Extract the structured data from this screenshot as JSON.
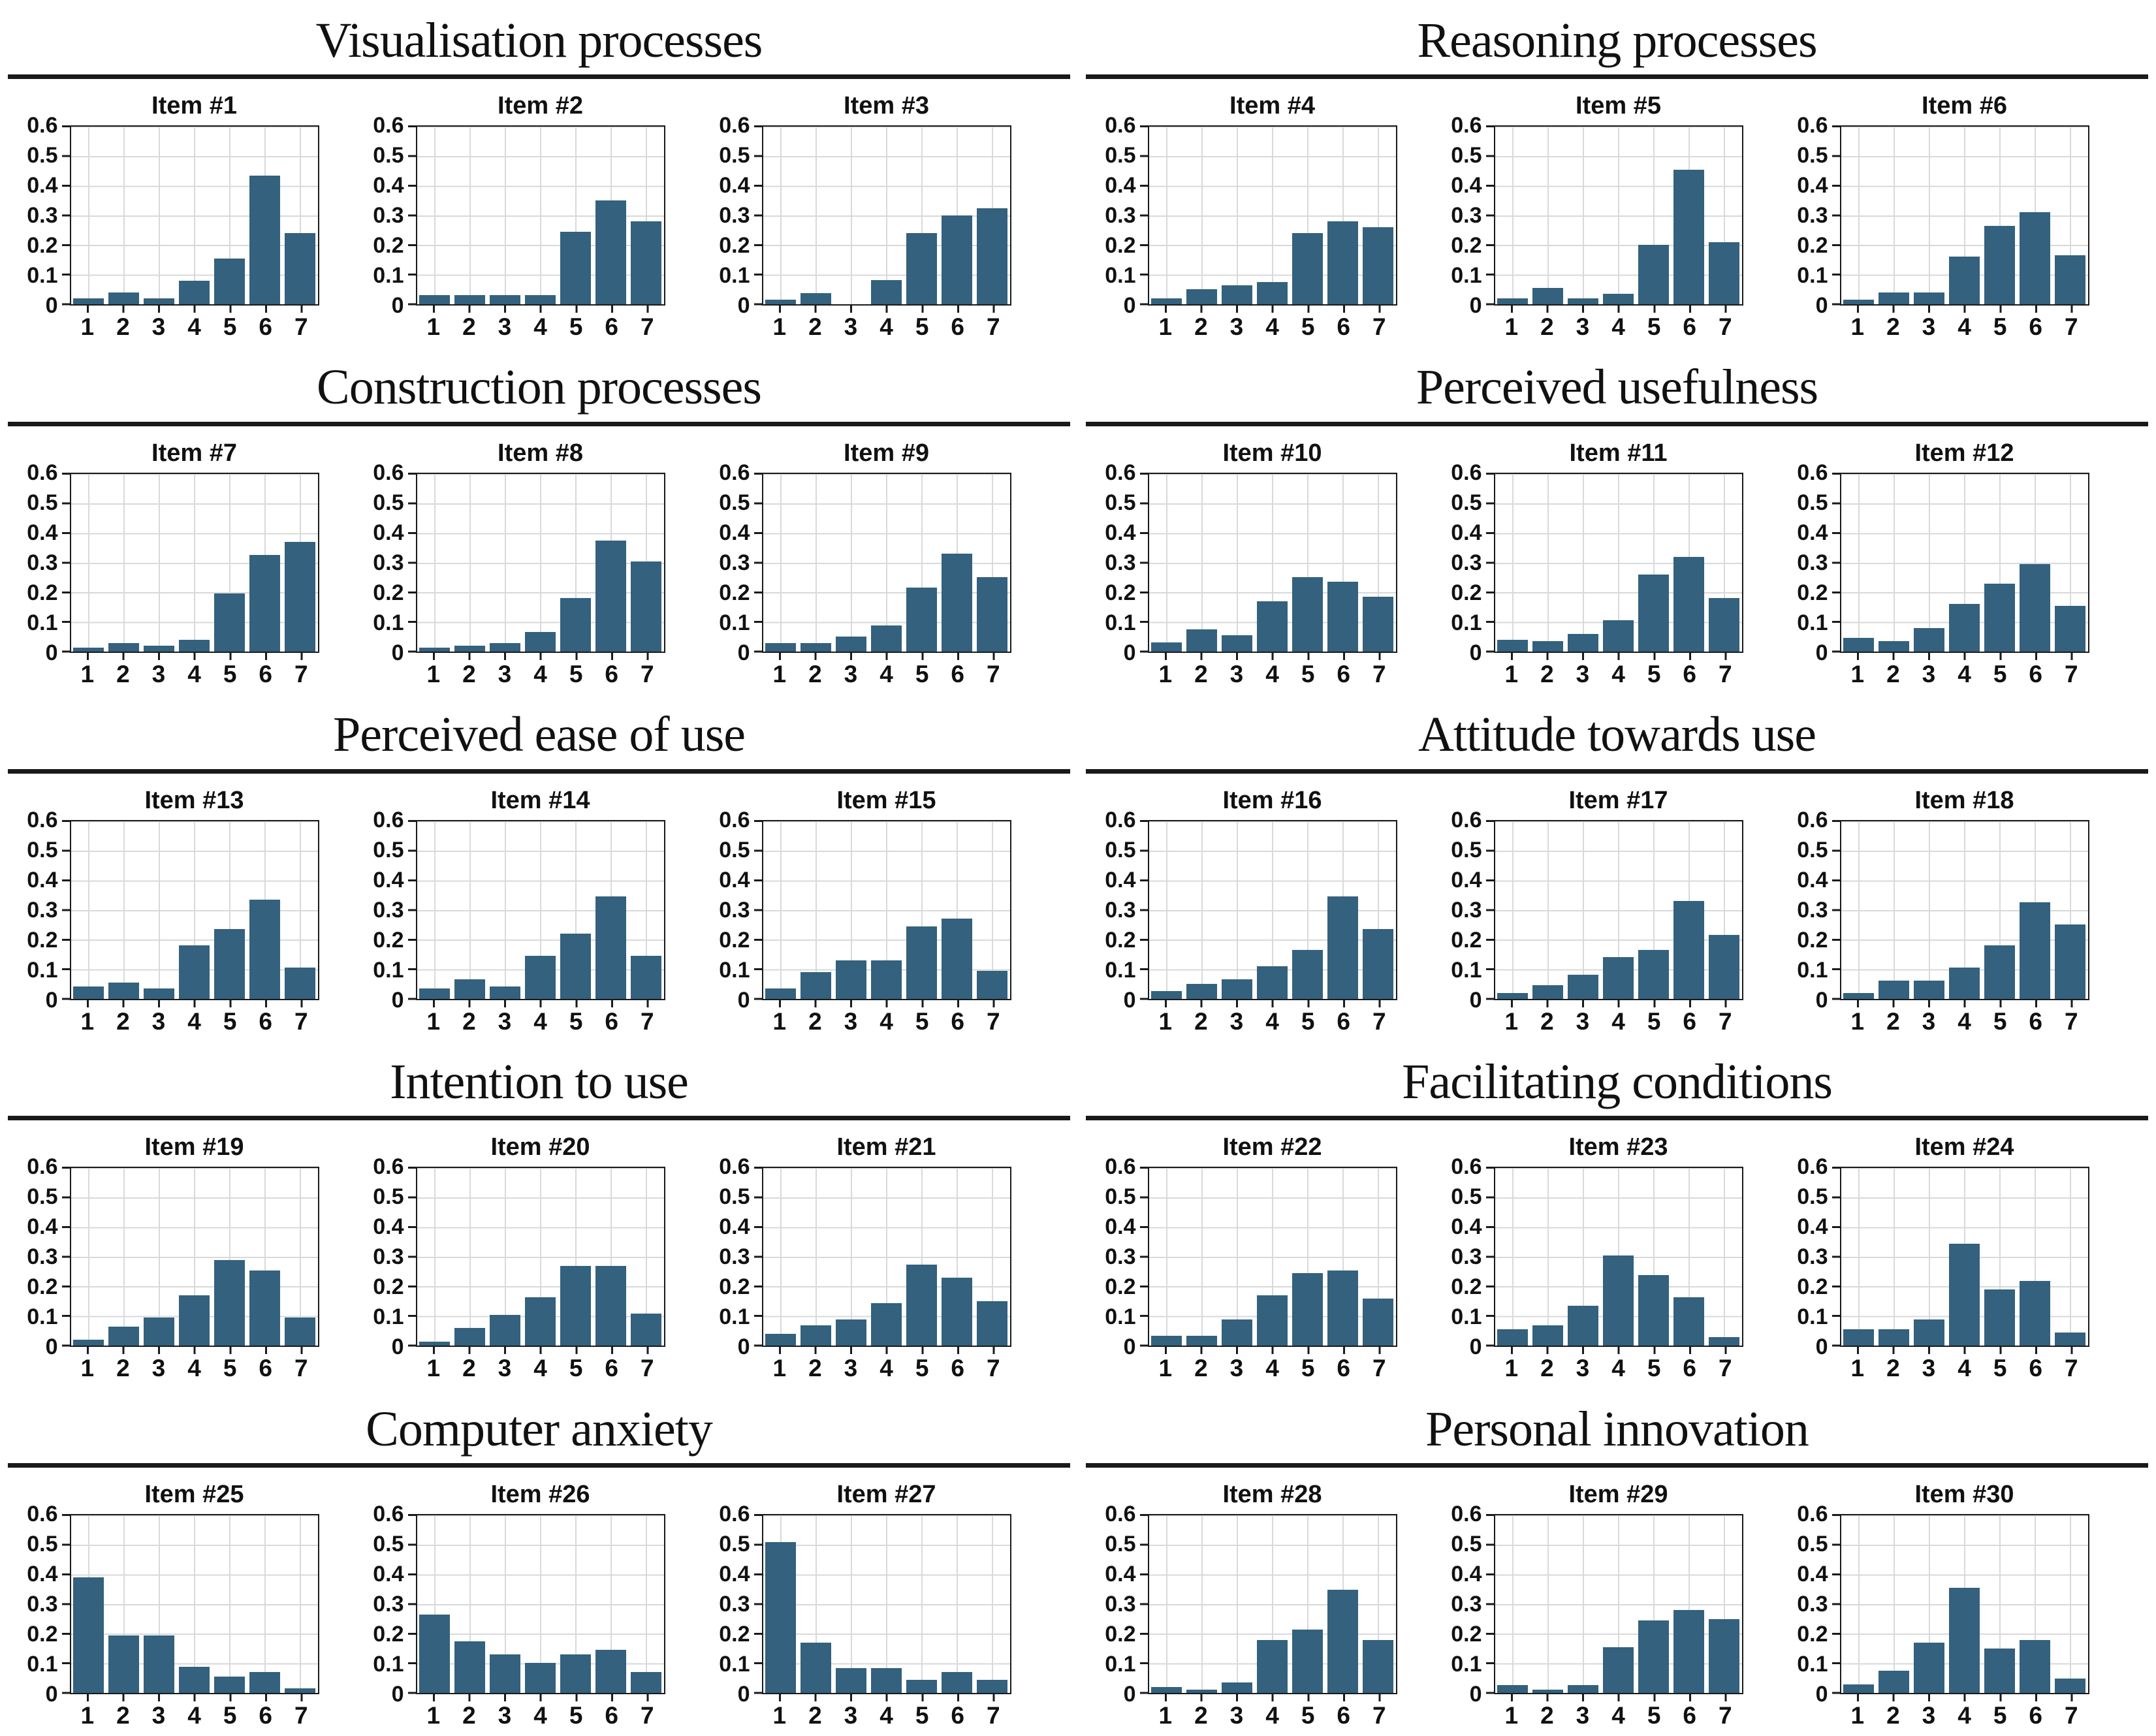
{
  "style": {
    "bar_color": "#33617e",
    "grid_color": "#d9d9d9",
    "axis_color": "#1a1a1a",
    "text_color": "#111111",
    "background": "#ffffff"
  },
  "chart_data": {
    "type": "bar",
    "x_tick_labels": [
      "1",
      "2",
      "3",
      "4",
      "5",
      "6",
      "7"
    ],
    "y_tick_labels": [
      "0.6",
      "0.5",
      "0.4",
      "0.3",
      "0.2",
      "0.1",
      "0"
    ],
    "ylim": [
      0,
      0.6
    ],
    "grid": true,
    "legend": false,
    "sections": [
      {
        "title": "Visualisation processes",
        "items": [
          {
            "label": "Item #1",
            "values": [
              0.02,
              0.04,
              0.02,
              0.08,
              0.155,
              0.435,
              0.24
            ]
          },
          {
            "label": "Item #2",
            "values": [
              0.03,
              0.03,
              0.03,
              0.03,
              0.245,
              0.35,
              0.28
            ]
          },
          {
            "label": "Item #3",
            "values": [
              0.015,
              0.038,
              0.0,
              0.082,
              0.24,
              0.3,
              0.325
            ]
          }
        ]
      },
      {
        "title": "Reasoning processes",
        "items": [
          {
            "label": "Item #4",
            "values": [
              0.02,
              0.05,
              0.065,
              0.075,
              0.24,
              0.28,
              0.26
            ]
          },
          {
            "label": "Item #5",
            "values": [
              0.02,
              0.055,
              0.02,
              0.035,
              0.2,
              0.455,
              0.21
            ]
          },
          {
            "label": "Item #6",
            "values": [
              0.015,
              0.04,
              0.04,
              0.16,
              0.265,
              0.31,
              0.165
            ]
          }
        ]
      },
      {
        "title": "Construction processes",
        "items": [
          {
            "label": "Item #7",
            "values": [
              0.013,
              0.028,
              0.02,
              0.04,
              0.195,
              0.325,
              0.37
            ]
          },
          {
            "label": "Item #8",
            "values": [
              0.013,
              0.02,
              0.028,
              0.065,
              0.18,
              0.375,
              0.305
            ]
          },
          {
            "label": "Item #9",
            "values": [
              0.028,
              0.028,
              0.05,
              0.088,
              0.215,
              0.33,
              0.25
            ]
          }
        ]
      },
      {
        "title": "Perceived usefulness",
        "items": [
          {
            "label": "Item #10",
            "values": [
              0.03,
              0.075,
              0.055,
              0.17,
              0.25,
              0.235,
              0.185
            ]
          },
          {
            "label": "Item #11",
            "values": [
              0.04,
              0.035,
              0.06,
              0.105,
              0.26,
              0.32,
              0.18
            ]
          },
          {
            "label": "Item #12",
            "values": [
              0.045,
              0.035,
              0.08,
              0.16,
              0.23,
              0.295,
              0.155
            ]
          }
        ]
      },
      {
        "title": "Perceived ease of use",
        "items": [
          {
            "label": "Item #13",
            "values": [
              0.04,
              0.055,
              0.035,
              0.18,
              0.235,
              0.335,
              0.105
            ]
          },
          {
            "label": "Item #14",
            "values": [
              0.035,
              0.065,
              0.04,
              0.145,
              0.22,
              0.345,
              0.145
            ]
          },
          {
            "label": "Item #15",
            "values": [
              0.035,
              0.09,
              0.13,
              0.13,
              0.245,
              0.27,
              0.095
            ]
          }
        ]
      },
      {
        "title": "Attitude towards use",
        "items": [
          {
            "label": "Item #16",
            "values": [
              0.025,
              0.05,
              0.065,
              0.11,
              0.165,
              0.345,
              0.235
            ]
          },
          {
            "label": "Item #17",
            "values": [
              0.02,
              0.045,
              0.08,
              0.14,
              0.165,
              0.33,
              0.215
            ]
          },
          {
            "label": "Item #18",
            "values": [
              0.02,
              0.06,
              0.06,
              0.105,
              0.18,
              0.325,
              0.25
            ]
          }
        ]
      },
      {
        "title": "Intention to use",
        "items": [
          {
            "label": "Item #19",
            "values": [
              0.02,
              0.065,
              0.095,
              0.17,
              0.29,
              0.255,
              0.095
            ]
          },
          {
            "label": "Item #20",
            "values": [
              0.015,
              0.06,
              0.105,
              0.165,
              0.27,
              0.27,
              0.11
            ]
          },
          {
            "label": "Item #21",
            "values": [
              0.04,
              0.07,
              0.09,
              0.145,
              0.275,
              0.23,
              0.15
            ]
          }
        ]
      },
      {
        "title": "Facilitating conditions",
        "items": [
          {
            "label": "Item #22",
            "values": [
              0.035,
              0.035,
              0.09,
              0.17,
              0.245,
              0.255,
              0.16
            ]
          },
          {
            "label": "Item #23",
            "values": [
              0.055,
              0.07,
              0.135,
              0.305,
              0.24,
              0.165,
              0.03
            ]
          },
          {
            "label": "Item #24",
            "values": [
              0.055,
              0.055,
              0.09,
              0.345,
              0.19,
              0.22,
              0.045
            ]
          }
        ]
      },
      {
        "title": "Computer anxiety",
        "items": [
          {
            "label": "Item #25",
            "values": [
              0.39,
              0.195,
              0.195,
              0.088,
              0.055,
              0.07,
              0.015
            ]
          },
          {
            "label": "Item #26",
            "values": [
              0.265,
              0.175,
              0.13,
              0.103,
              0.13,
              0.145,
              0.07
            ]
          },
          {
            "label": "Item #27",
            "values": [
              0.51,
              0.17,
              0.085,
              0.085,
              0.045,
              0.07,
              0.045
            ]
          }
        ]
      },
      {
        "title": "Personal innovation",
        "items": [
          {
            "label": "Item #28",
            "values": [
              0.02,
              0.012,
              0.035,
              0.18,
              0.215,
              0.35,
              0.18
            ]
          },
          {
            "label": "Item #29",
            "values": [
              0.028,
              0.012,
              0.028,
              0.155,
              0.245,
              0.28,
              0.25
            ]
          },
          {
            "label": "Item #30",
            "values": [
              0.03,
              0.075,
              0.17,
              0.355,
              0.15,
              0.18,
              0.05
            ]
          }
        ]
      }
    ]
  }
}
